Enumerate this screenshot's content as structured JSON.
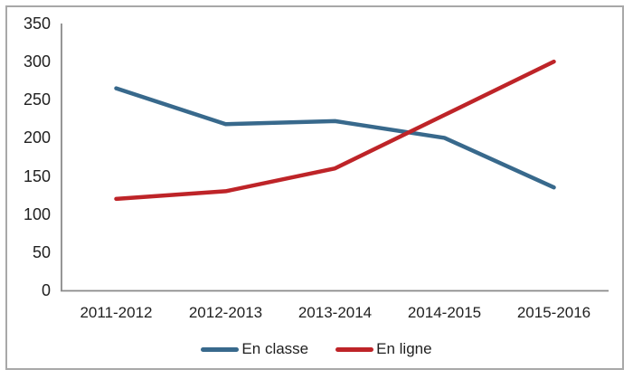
{
  "chart_data": {
    "type": "line",
    "title": "",
    "xlabel": "",
    "ylabel": "",
    "categories": [
      "2011-2012",
      "2012-2013",
      "2013-2014",
      "2014-2015",
      "2015-2016"
    ],
    "series": [
      {
        "name": "En classe",
        "color": "#38698C",
        "values": [
          265,
          218,
          222,
          200,
          135
        ]
      },
      {
        "name": "En ligne",
        "color": "#BE2428",
        "values": [
          120,
          130,
          160,
          230,
          300
        ]
      }
    ],
    "yticks": [
      0,
      50,
      100,
      150,
      200,
      250,
      300,
      350
    ],
    "ylim": [
      0,
      350
    ],
    "grid": false,
    "legend_position": "bottom"
  },
  "frame": {
    "border_color": "#a8a8a8"
  },
  "axis": {
    "line_color": "#8a8a8a",
    "text_color": "#1f1f1f"
  }
}
